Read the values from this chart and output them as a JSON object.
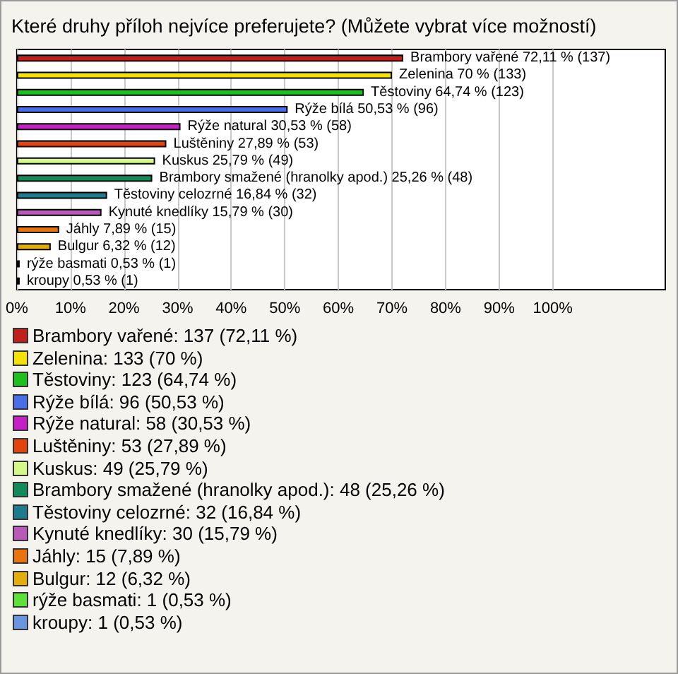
{
  "chart_data": {
    "type": "bar",
    "orientation": "horizontal",
    "title": "Které druhy příloh nejvíce preferujete? (Můžete vybrat více možností)",
    "categories": [
      "Brambory vařené",
      "Zelenina",
      "Těstoviny",
      "Rýže bílá",
      "Rýže natural",
      "Luštěniny",
      "Kuskus",
      "Brambory smažené (hranolky apod.)",
      "Těstoviny celozrné",
      "Kynuté knedlíky",
      "Jáhly",
      "Bulgur",
      "rýže basmati",
      "kroupy"
    ],
    "values": [
      72.11,
      70,
      64.74,
      50.53,
      30.53,
      27.89,
      25.79,
      25.26,
      16.84,
      15.79,
      7.89,
      6.32,
      0.53,
      0.53
    ],
    "colors": [
      "#c0201a",
      "#f5e10a",
      "#1fbf1f",
      "#4a6ee8",
      "#c61fc6",
      "#e2430f",
      "#d4f98a",
      "#138a5a",
      "#1f7a8c",
      "#b85ab8",
      "#e8740f",
      "#e3ad0c",
      "#5ee03a",
      "#6a95df"
    ],
    "value_labels": [
      "72,11 % (137)",
      "70 % (133)",
      "64,74 % (123)",
      "50,53 % (96)",
      "30,53 % (58)",
      "27,89 % (53)",
      "25,79 % (49)",
      "25,26 % (48)",
      "16,84 % (32)",
      "15,79 % (30)",
      "7,89 % (15)",
      "6,32 % (12)",
      "0,53 % (1)",
      "0,53 % (1)"
    ],
    "xlim": [
      0,
      121
    ],
    "xticks": [
      {
        "value": 0,
        "label": "0%"
      },
      {
        "value": 10,
        "label": "10%"
      },
      {
        "value": 20,
        "label": "20%"
      },
      {
        "value": 30,
        "label": "30%"
      },
      {
        "value": 40,
        "label": "40%"
      },
      {
        "value": 50,
        "label": "50%"
      },
      {
        "value": 60,
        "label": "60%"
      },
      {
        "value": 70,
        "label": "70%"
      },
      {
        "value": 80,
        "label": "80%"
      },
      {
        "value": 90,
        "label": "90%"
      },
      {
        "value": 100,
        "label": "100%"
      }
    ],
    "grid": "x",
    "tick_labels": "x",
    "annotations": [
      "Brambory vařené: 137 (72,11 %)",
      "Zelenina: 133 (70 %)",
      "Těstoviny: 123 (64,74 %)",
      "Rýže bílá: 96 (50,53 %)",
      "Rýže natural: 58 (30,53 %)",
      "Luštěniny: 53 (27,89 %)",
      "Kuskus: 49 (25,79 %)",
      "Brambory smažené (hranolky apod.): 48 (25,26 %)",
      "Těstoviny celozrné: 32 (16,84 %)",
      "Kynuté knedlíky: 30 (15,79 %)",
      "Jáhly: 15 (7,89 %)",
      "Bulgur: 12 (6,32 %)",
      "rýže basmati: 1 (0,53 %)",
      "kroupy: 1 (0,53 %)"
    ]
  }
}
